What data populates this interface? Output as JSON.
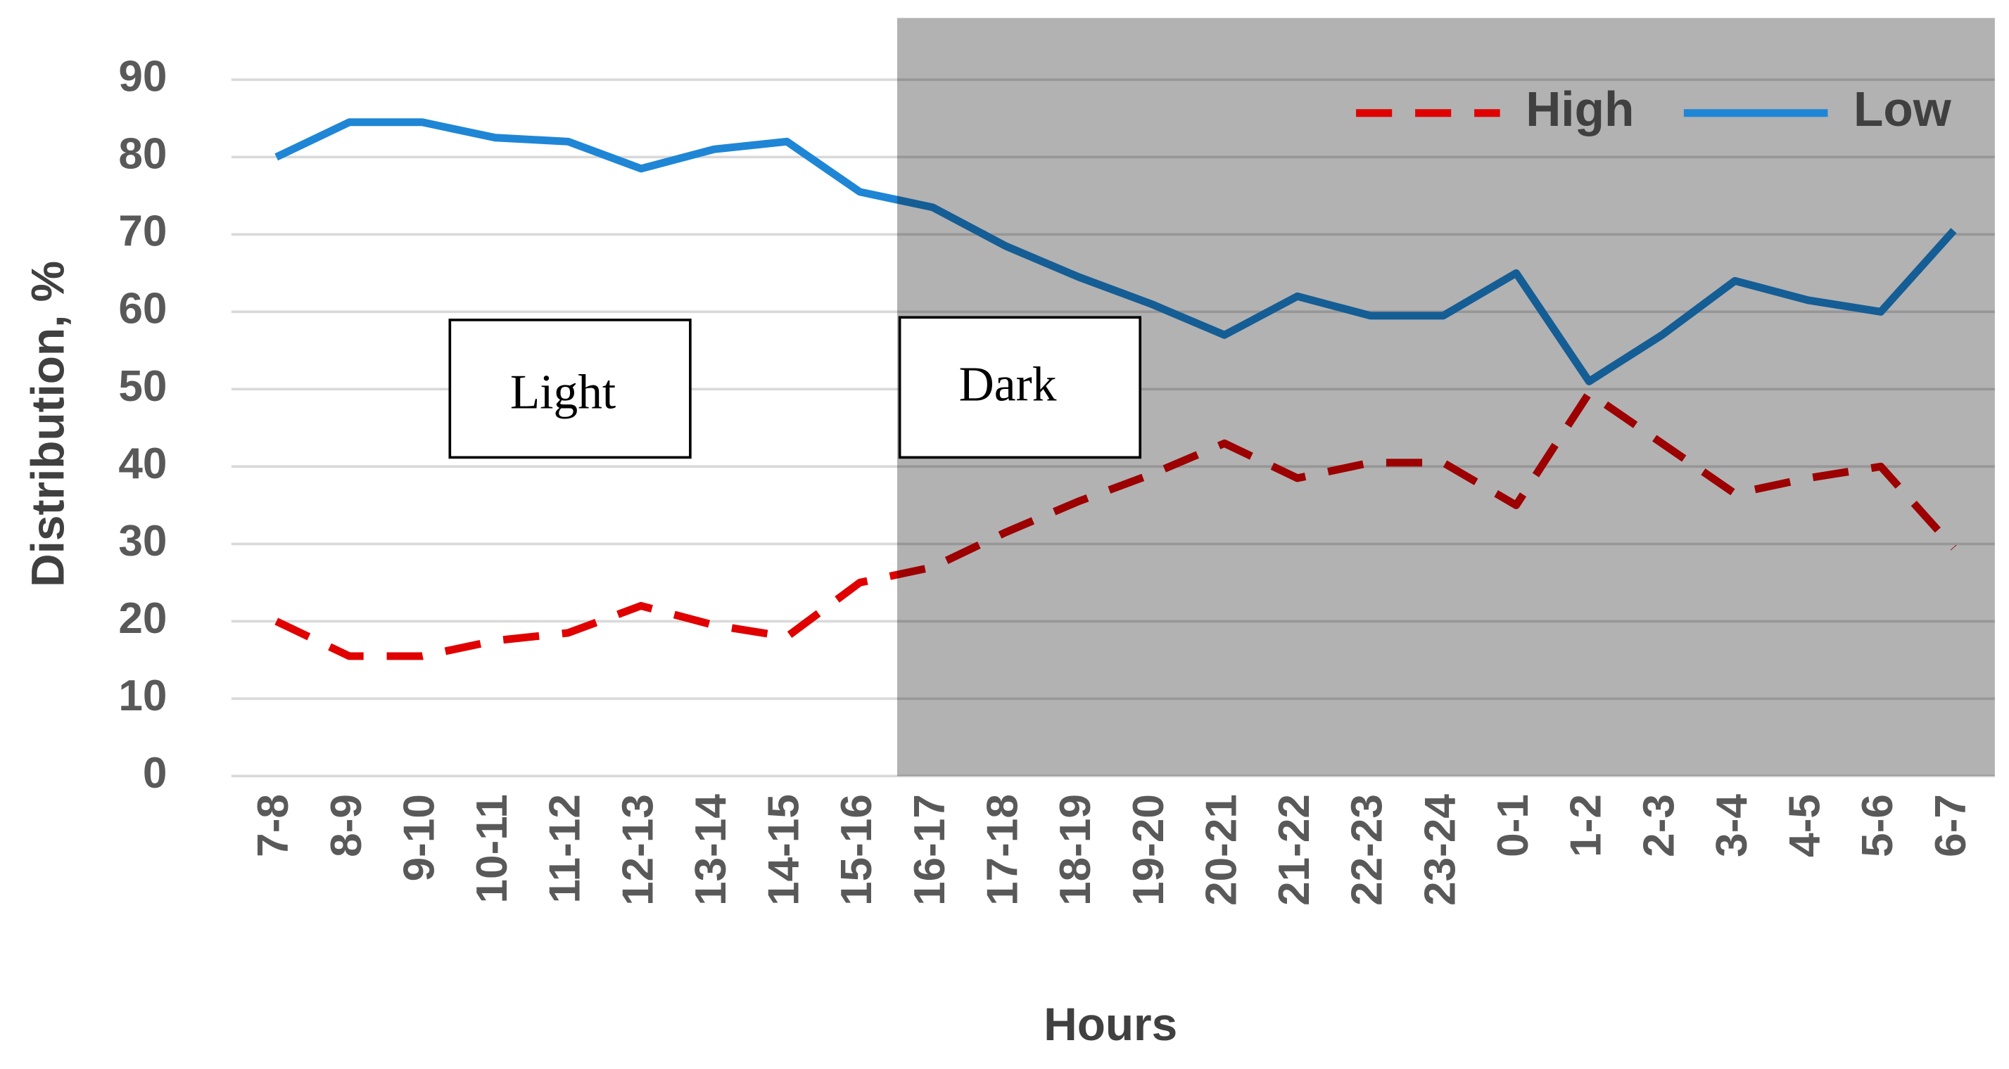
{
  "chart_data": {
    "type": "line",
    "x_label": "Hours",
    "y_label": "Distribution, %",
    "categories": [
      "7-8",
      "8-9",
      "9-10",
      "10-11",
      "11-12",
      "12-13",
      "13-14",
      "14-15",
      "15-16",
      "16-17",
      "17-18",
      "18-19",
      "19-20",
      "20-21",
      "21-22",
      "22-23",
      "23-24",
      "0-1",
      "1-2",
      "2-3",
      "3-4",
      "4-5",
      "5-6",
      "6-7"
    ],
    "series": [
      {
        "name": "High",
        "color": "#e00000",
        "line_style": "dashed",
        "values": [
          20,
          15.5,
          15.5,
          17.5,
          18.5,
          22,
          19.5,
          18,
          25,
          27,
          31.5,
          35.5,
          39,
          43,
          38.5,
          40.5,
          40.5,
          35,
          49.5,
          43,
          36.5,
          38.5,
          40,
          29.5
        ]
      },
      {
        "name": "Low",
        "color": "#1f86d6",
        "line_style": "solid",
        "values": [
          80,
          84.5,
          84.5,
          82.5,
          82,
          78.5,
          81,
          82,
          75.5,
          73.5,
          68.5,
          64.5,
          61,
          57,
          62,
          59.5,
          59.5,
          65,
          51,
          57,
          64,
          61.5,
          60,
          70.5
        ]
      }
    ],
    "ylim": [
      0,
      90
    ],
    "yticks": [
      0,
      10,
      20,
      30,
      40,
      50,
      60,
      70,
      80,
      90
    ],
    "grid": true,
    "legend_position": "top-right",
    "annotations": [
      {
        "text": "Light"
      },
      {
        "text": "Dark"
      }
    ]
  }
}
